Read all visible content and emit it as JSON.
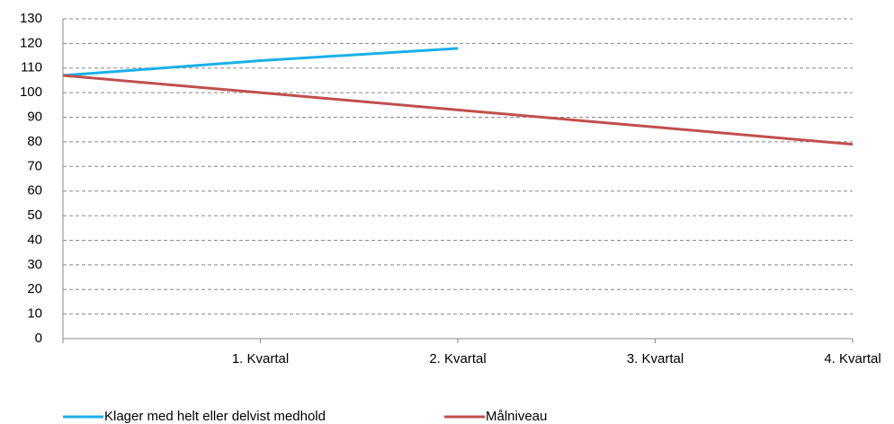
{
  "chart_data": {
    "type": "line",
    "categories": [
      null,
      "1. Kvartal",
      "2. Kvartal",
      "3. Kvartal",
      "4. Kvartal"
    ],
    "series": [
      {
        "name": "Klager med helt eller delvist medhold",
        "color": "#1ab0e8",
        "values": [
          107,
          113,
          118,
          null,
          null
        ]
      },
      {
        "name": "Målniveau",
        "color": "#c0504d",
        "values": [
          107,
          100,
          93,
          86,
          79
        ]
      }
    ],
    "ylim": [
      0,
      130
    ],
    "yticks": [
      0,
      10,
      20,
      30,
      40,
      50,
      60,
      70,
      80,
      90,
      100,
      110,
      120,
      130
    ],
    "grid": true,
    "legend": "bottom"
  }
}
